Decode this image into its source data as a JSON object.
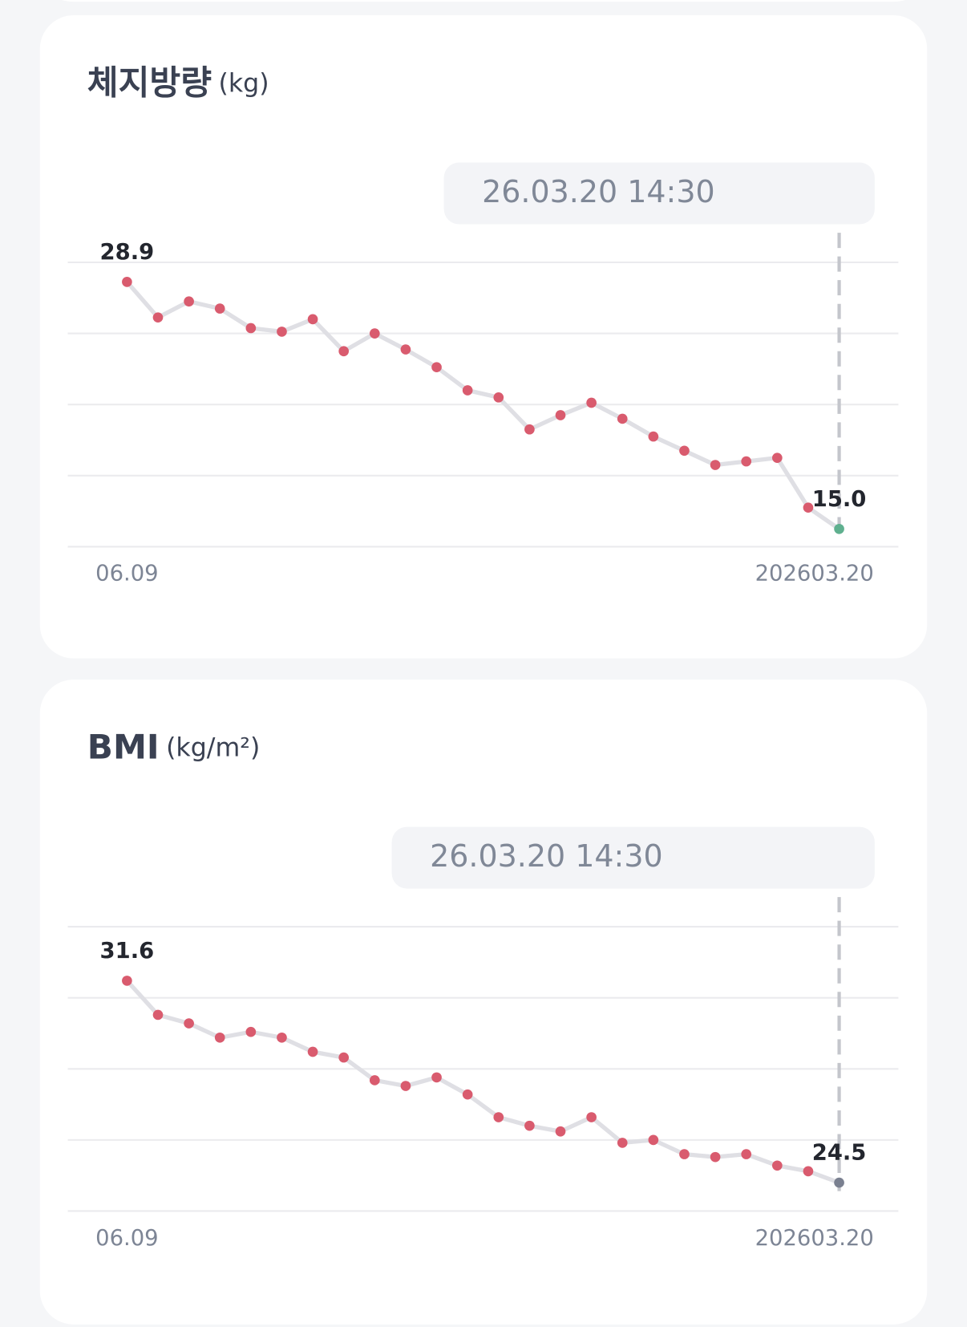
{
  "chart_data": [
    {
      "type": "line",
      "title": "체지방량",
      "unit": "(kg)",
      "tooltip": {
        "date": "26.03.20 14:30",
        "value": "15.0kg"
      },
      "categories": [
        "06.09",
        null,
        null,
        null,
        null,
        null,
        null,
        null,
        null,
        null,
        null,
        null,
        null,
        null,
        null,
        null,
        null,
        null,
        null,
        null,
        null,
        null,
        null,
        "202603.20"
      ],
      "values": [
        28.9,
        26.9,
        27.8,
        27.4,
        26.3,
        26.1,
        26.8,
        25.0,
        26.0,
        25.1,
        24.1,
        22.8,
        22.4,
        20.6,
        21.4,
        22.1,
        21.2,
        20.2,
        19.4,
        18.6,
        18.8,
        19.0,
        16.2,
        15.0
      ],
      "value_labels": [
        "28.9",
        null,
        null,
        null,
        null,
        null,
        null,
        null,
        null,
        null,
        null,
        null,
        null,
        null,
        null,
        null,
        null,
        null,
        null,
        null,
        null,
        null,
        null,
        "15.0"
      ],
      "color": "#d95b6e",
      "line_color": "#dfdfe4",
      "highlight_color": "#5fb08f",
      "ylim": [
        14,
        30
      ],
      "yticks": [
        14,
        18,
        22,
        26,
        30
      ],
      "grid": true
    },
    {
      "type": "line",
      "title": "BMI",
      "unit": "(kg/m²)",
      "tooltip": {
        "date": "26.03.20 14:30",
        "value": "24.5kg/m²"
      },
      "categories": [
        "06.09",
        null,
        null,
        null,
        null,
        null,
        null,
        null,
        null,
        null,
        null,
        null,
        null,
        null,
        null,
        null,
        null,
        null,
        null,
        null,
        null,
        null,
        null,
        "202603.20"
      ],
      "values": [
        31.6,
        30.4,
        30.1,
        29.6,
        29.8,
        29.6,
        29.1,
        28.9,
        28.1,
        27.9,
        28.2,
        27.6,
        26.8,
        26.5,
        26.3,
        26.8,
        25.9,
        26.0,
        25.5,
        25.4,
        25.5,
        25.1,
        24.9,
        24.5
      ],
      "value_labels": [
        "31.6",
        null,
        null,
        null,
        null,
        null,
        null,
        null,
        null,
        null,
        null,
        null,
        null,
        null,
        null,
        null,
        null,
        null,
        null,
        null,
        null,
        null,
        null,
        "24.5"
      ],
      "color": "#d95b6e",
      "line_color": "#dfdfe4",
      "highlight_color": "#7a8090",
      "ylim": [
        23.5,
        33.5
      ],
      "yticks": [
        23.5,
        26,
        28.5,
        31,
        33.5
      ],
      "grid": true
    }
  ]
}
